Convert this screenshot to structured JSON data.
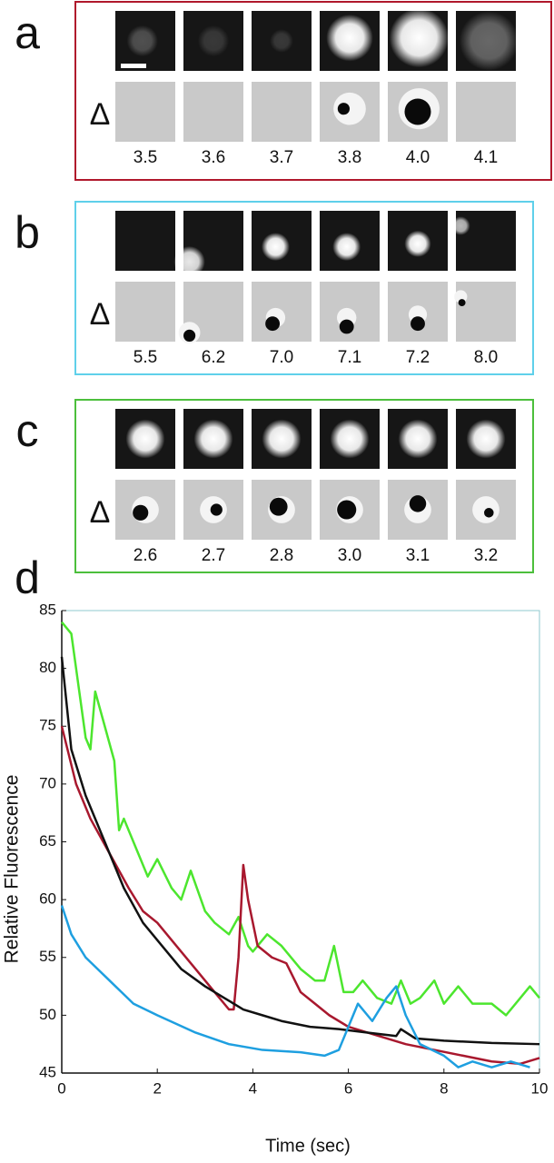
{
  "panels": [
    {
      "label": "a",
      "delta": "Δ",
      "color": "#b0182c",
      "times": [
        "3.5",
        "3.6",
        "3.7",
        "3.8",
        "4.0",
        "4.1"
      ]
    },
    {
      "label": "b",
      "delta": "Δ",
      "color": "#5fd0ea",
      "times": [
        "5.5",
        "6.2",
        "7.0",
        "7.1",
        "7.2",
        "8.0"
      ]
    },
    {
      "label": "c",
      "delta": "Δ",
      "color": "#4cbf3c",
      "times": [
        "2.6",
        "2.7",
        "2.8",
        "3.0",
        "3.1",
        "3.2"
      ]
    }
  ],
  "chart_data": {
    "type": "line",
    "label": "d",
    "ylabel": "Relative Fluorescence",
    "xlabel": "Time (sec)",
    "xlim": [
      0,
      10
    ],
    "ylim": [
      45,
      85
    ],
    "xticks": [
      0,
      2,
      4,
      6,
      8,
      10
    ],
    "yticks": [
      45,
      50,
      55,
      60,
      65,
      70,
      75,
      80,
      85
    ],
    "series": [
      {
        "color": "#4ce62e",
        "x": [
          0,
          0.2,
          0.3,
          0.5,
          0.6,
          0.7,
          0.9,
          1.1,
          1.2,
          1.3,
          1.6,
          1.8,
          2.0,
          2.3,
          2.5,
          2.7,
          3.0,
          3.2,
          3.5,
          3.7,
          3.9,
          4.0,
          4.3,
          4.6,
          5.0,
          5.3,
          5.5,
          5.7,
          5.9,
          6.1,
          6.3,
          6.6,
          6.9,
          7.1,
          7.3,
          7.5,
          7.8,
          8.0,
          8.3,
          8.6,
          9.0,
          9.3,
          9.6,
          9.8,
          10
        ],
        "values": [
          84,
          83,
          80,
          74,
          73,
          78,
          75,
          72,
          66,
          67,
          64,
          62,
          63.5,
          61,
          60,
          62.5,
          59,
          58,
          57,
          58.5,
          56,
          55.5,
          57,
          56,
          54,
          53,
          53,
          56,
          52,
          52,
          53,
          51.5,
          51,
          53,
          51,
          51.5,
          53,
          51,
          52.5,
          51,
          51,
          50,
          51.5,
          52.5,
          51.5
        ]
      },
      {
        "color": "#a8182e",
        "x": [
          0,
          0.3,
          0.6,
          1.0,
          1.4,
          1.7,
          2.0,
          2.4,
          2.8,
          3.2,
          3.5,
          3.6,
          3.7,
          3.8,
          3.9,
          4.1,
          4.4,
          4.7,
          5.0,
          5.3,
          5.6,
          6.0,
          6.4,
          6.8,
          7.2,
          7.8,
          8.4,
          9.0,
          9.6,
          10
        ],
        "values": [
          75,
          70,
          67,
          64,
          61,
          59,
          58,
          56,
          54,
          52,
          50.5,
          50.5,
          55,
          63,
          60,
          56,
          55,
          54.5,
          52,
          51,
          50,
          49,
          48.5,
          48,
          47.5,
          47,
          46.5,
          46,
          45.8,
          46.3
        ]
      },
      {
        "color": "#111111",
        "x": [
          0,
          0.2,
          0.5,
          0.9,
          1.3,
          1.7,
          2.1,
          2.5,
          3.0,
          3.4,
          3.8,
          4.2,
          4.6,
          5.2,
          5.8,
          6.4,
          7.0,
          7.1,
          7.4,
          8.0,
          9.0,
          10
        ],
        "values": [
          81,
          73,
          69,
          65,
          61,
          58,
          56,
          54,
          52.5,
          51.5,
          50.5,
          50,
          49.5,
          49,
          48.8,
          48.5,
          48.2,
          48.8,
          48,
          47.8,
          47.6,
          47.5
        ]
      },
      {
        "color": "#1e9fe0",
        "x": [
          0,
          0.2,
          0.5,
          1.0,
          1.5,
          2.0,
          2.8,
          3.5,
          4.2,
          5.0,
          5.5,
          5.8,
          6.0,
          6.2,
          6.5,
          6.8,
          7.0,
          7.2,
          7.5,
          8.0,
          8.3,
          8.6,
          9.0,
          9.4,
          9.8
        ],
        "values": [
          59.5,
          57,
          55,
          53,
          51,
          50,
          48.5,
          47.5,
          47,
          46.8,
          46.5,
          47,
          49,
          51,
          49.5,
          51.5,
          52.5,
          50,
          47.5,
          46.5,
          45.5,
          46,
          45.5,
          46,
          45.5
        ]
      }
    ]
  }
}
